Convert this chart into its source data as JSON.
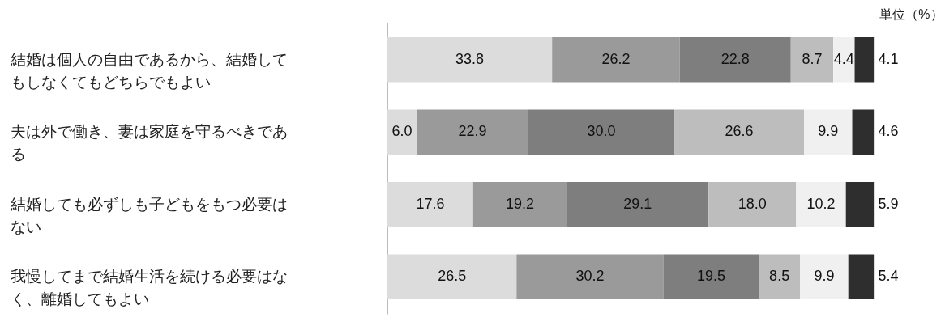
{
  "chart_data": {
    "type": "bar",
    "orientation": "horizontal",
    "stacked": true,
    "legend": false,
    "grid": false,
    "tick_labels": "y",
    "categories": [
      "結婚は個人の自由であるから、結婚してもしなくてもどちらでもよい",
      "夫は外で働き、妻は家庭を守るべきである",
      "結婚しても必ずしも子どもをもつ必要はない",
      "我慢してまで結婚生活を続ける必要はなく、離婚してもよい"
    ],
    "series": [
      {
        "color": "#dcdcdc",
        "values": [
          33.8,
          6.0,
          17.6,
          26.5
        ],
        "value_labels": [
          "33.8",
          "6.0",
          "17.6",
          "26.5"
        ]
      },
      {
        "color": "#9a9a9a",
        "values": [
          26.2,
          22.9,
          19.2,
          30.2
        ],
        "value_labels": [
          "26.2",
          "22.9",
          "19.2",
          "30.2"
        ]
      },
      {
        "color": "#7e7e7e",
        "values": [
          22.8,
          30.0,
          29.1,
          19.5
        ],
        "value_labels": [
          "22.8",
          "30.0",
          "29.1",
          "19.5"
        ]
      },
      {
        "color": "#bdbdbd",
        "values": [
          8.7,
          26.6,
          18.0,
          8.5
        ],
        "value_labels": [
          "8.7",
          "26.6",
          "18.0",
          "8.5"
        ]
      },
      {
        "color": "#f0f0f0",
        "values": [
          4.4,
          9.9,
          10.2,
          9.9
        ],
        "value_labels": [
          "4.4",
          "9.9",
          "10.2",
          "9.9"
        ]
      },
      {
        "color": "#2e2e2e",
        "values": [
          4.1,
          4.6,
          5.9,
          5.4
        ],
        "value_labels": [
          "4.1",
          "4.6",
          "5.9",
          "5.4"
        ]
      }
    ],
    "annotations": [
      "単位（%）"
    ]
  }
}
